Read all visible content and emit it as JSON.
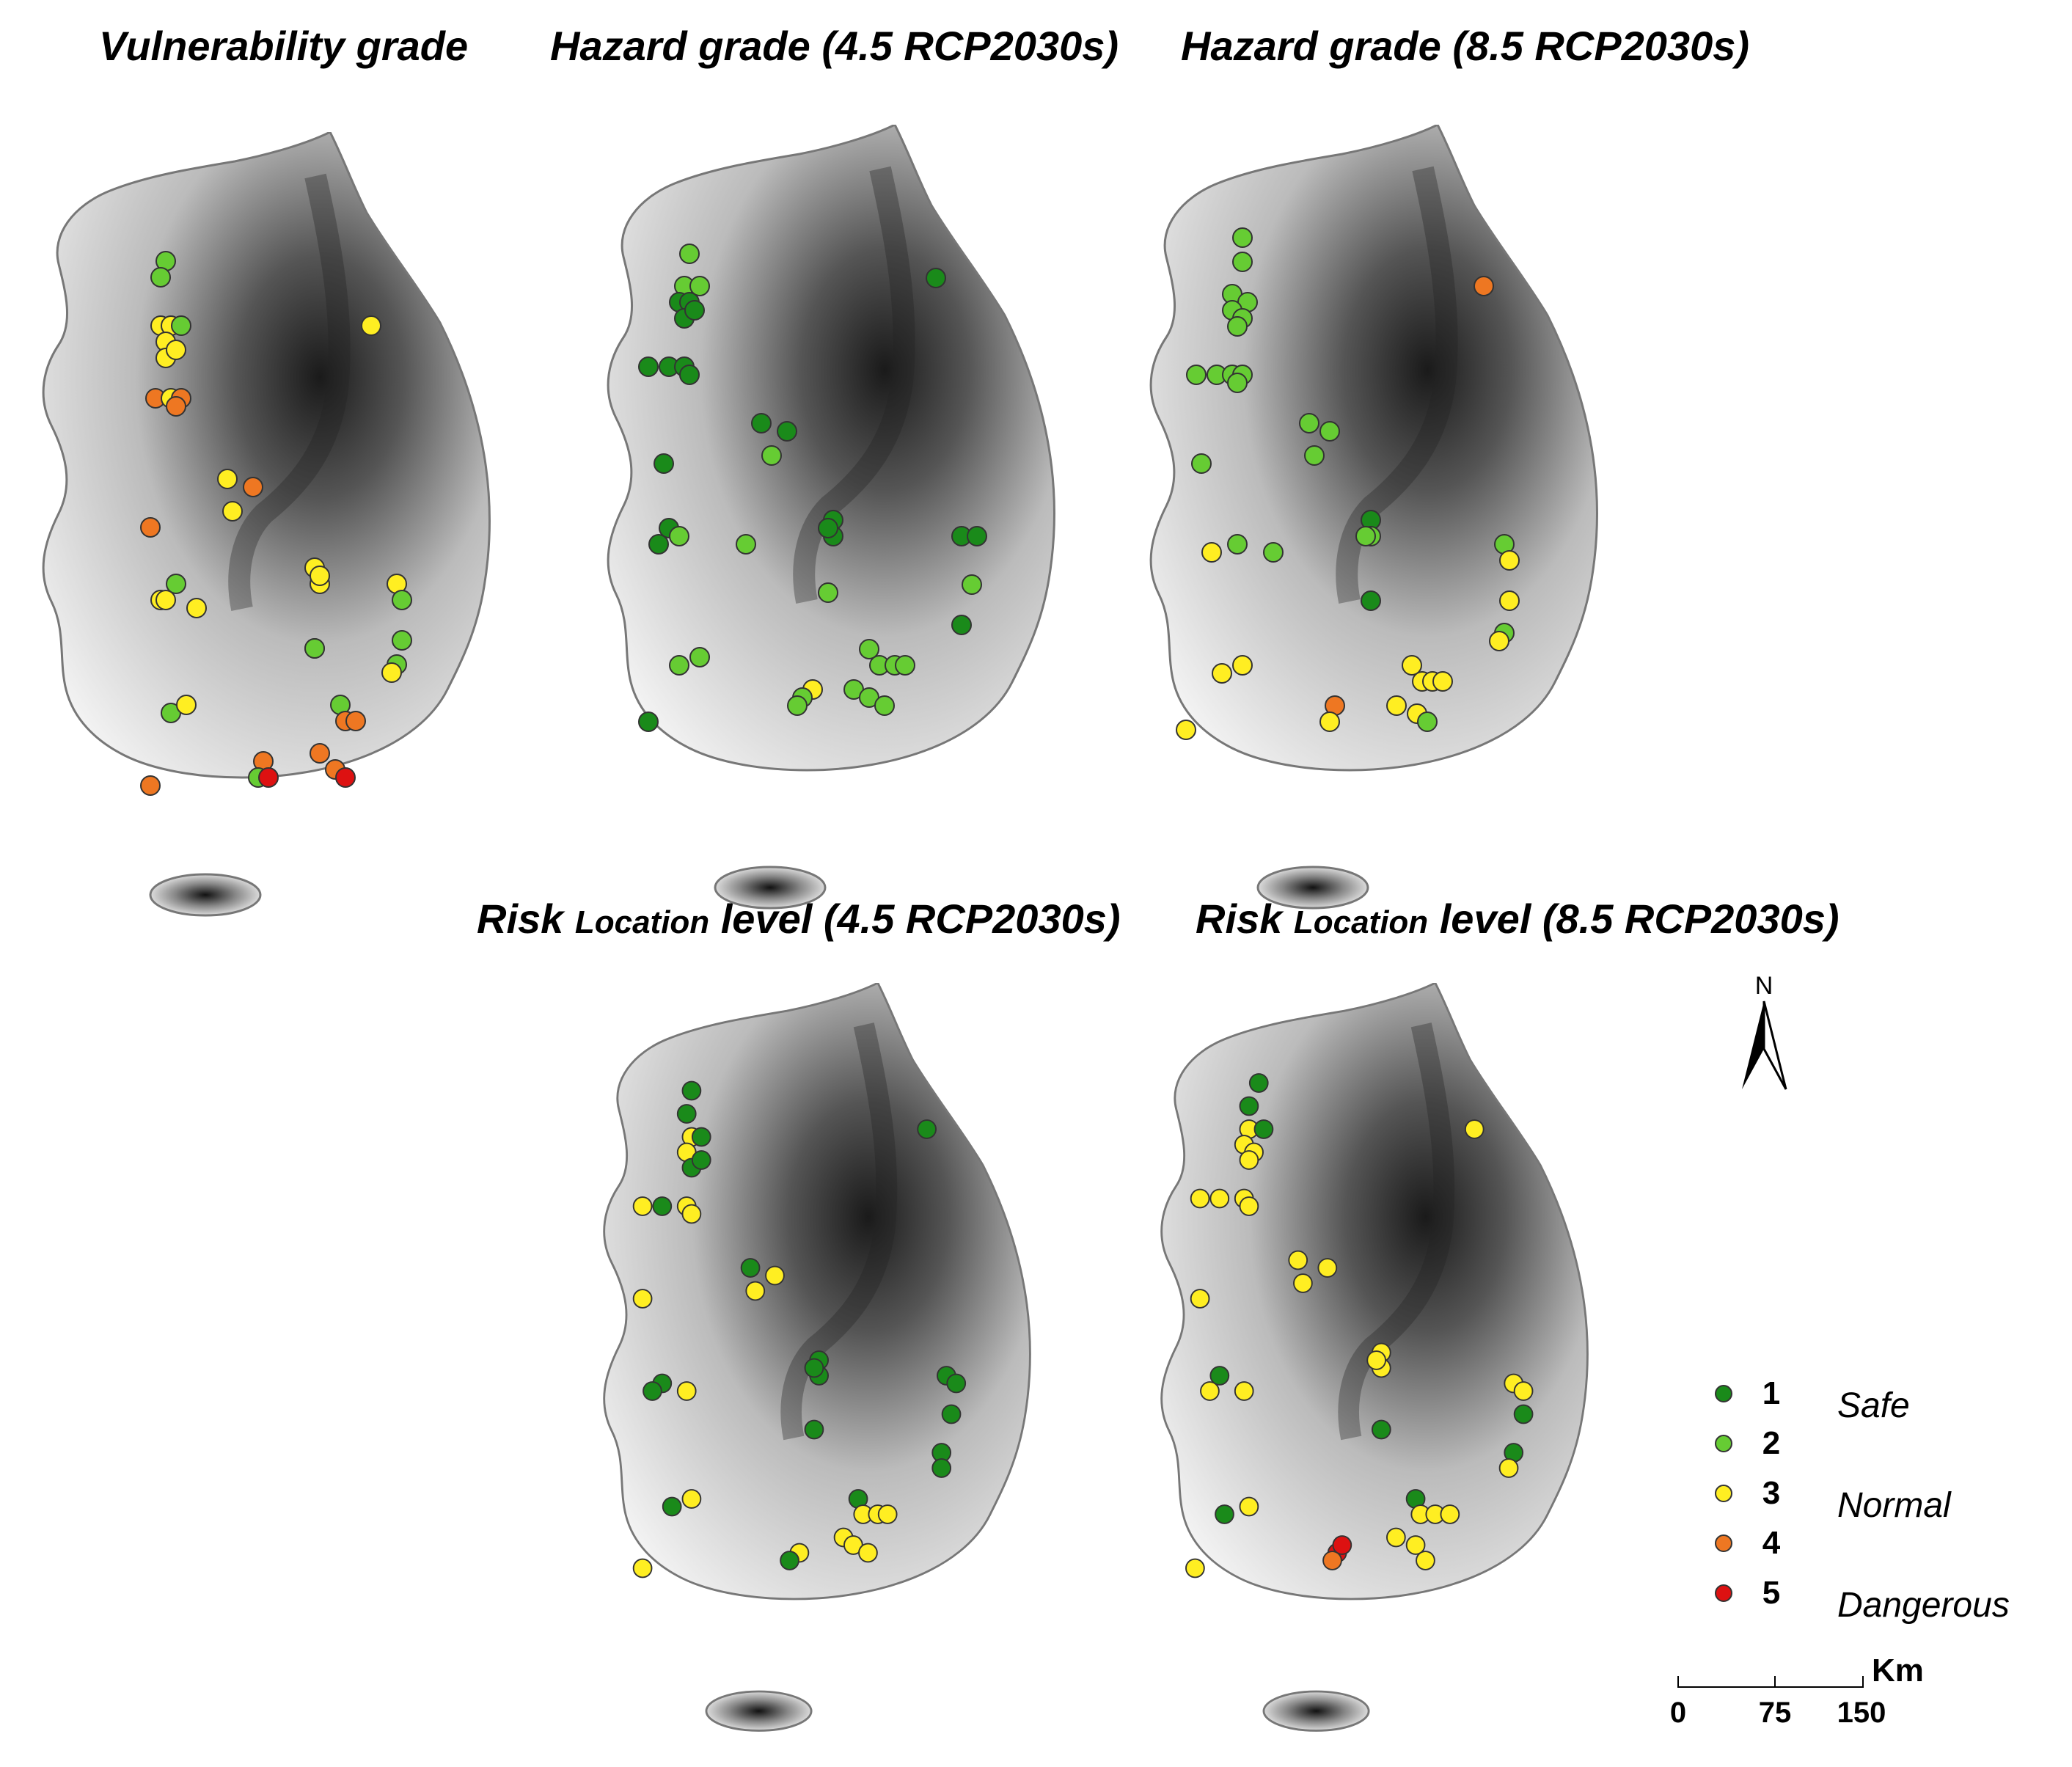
{
  "titles": {
    "vulnerability": "Vulnerability grade",
    "hazard45": "Hazard grade (4.5 RCP2030s)",
    "hazard85": "Hazard grade (8.5 RCP2030s)",
    "risk45_a": "Risk",
    "risk45_b": "Location",
    "risk45_c": "level (4.5 RCP2030s)",
    "risk85_a": "Risk",
    "risk85_b": "Location",
    "risk85_c": "level (8.5 RCP2030s)"
  },
  "colors": {
    "1": "#1a8a1a",
    "2": "#66cc33",
    "3": "#ffee22",
    "4": "#ee7722",
    "5": "#dd1111"
  },
  "legend": {
    "items": [
      {
        "grade": "1",
        "label": "Safe"
      },
      {
        "grade": "2",
        "label": ""
      },
      {
        "grade": "3",
        "label": "Normal"
      },
      {
        "grade": "4",
        "label": ""
      },
      {
        "grade": "5",
        "label": "Dangerous"
      }
    ]
  },
  "north_label": "N",
  "scale": {
    "ticks": [
      "0",
      "75",
      "150"
    ],
    "unit": "Km"
  },
  "panels": {
    "vulnerability": [
      [
        0.28,
        0.16,
        2
      ],
      [
        0.27,
        0.18,
        2
      ],
      [
        0.27,
        0.24,
        3
      ],
      [
        0.29,
        0.24,
        3
      ],
      [
        0.31,
        0.24,
        2
      ],
      [
        0.28,
        0.26,
        3
      ],
      [
        0.28,
        0.28,
        3
      ],
      [
        0.3,
        0.27,
        3
      ],
      [
        0.26,
        0.33,
        4
      ],
      [
        0.29,
        0.33,
        3
      ],
      [
        0.31,
        0.33,
        4
      ],
      [
        0.3,
        0.34,
        4
      ],
      [
        0.68,
        0.24,
        3
      ],
      [
        0.4,
        0.43,
        3
      ],
      [
        0.45,
        0.44,
        4
      ],
      [
        0.41,
        0.47,
        3
      ],
      [
        0.25,
        0.49,
        4
      ],
      [
        0.3,
        0.56,
        2
      ],
      [
        0.27,
        0.58,
        3
      ],
      [
        0.28,
        0.58,
        3
      ],
      [
        0.34,
        0.59,
        3
      ],
      [
        0.57,
        0.54,
        3
      ],
      [
        0.58,
        0.56,
        3
      ],
      [
        0.58,
        0.55,
        3
      ],
      [
        0.73,
        0.56,
        3
      ],
      [
        0.74,
        0.58,
        2
      ],
      [
        0.74,
        0.63,
        2
      ],
      [
        0.57,
        0.64,
        2
      ],
      [
        0.57,
        0.64,
        2
      ],
      [
        0.73,
        0.66,
        2
      ],
      [
        0.72,
        0.67,
        3
      ],
      [
        0.29,
        0.72,
        2
      ],
      [
        0.32,
        0.71,
        3
      ],
      [
        0.62,
        0.71,
        2
      ],
      [
        0.63,
        0.73,
        4
      ],
      [
        0.65,
        0.73,
        4
      ],
      [
        0.47,
        0.78,
        4
      ],
      [
        0.46,
        0.8,
        2
      ],
      [
        0.48,
        0.8,
        5
      ],
      [
        0.58,
        0.77,
        4
      ],
      [
        0.61,
        0.79,
        4
      ],
      [
        0.63,
        0.8,
        5
      ],
      [
        0.25,
        0.81,
        4
      ]
    ],
    "hazard45": [
      [
        0.2,
        0.16,
        2
      ],
      [
        0.19,
        0.2,
        2
      ],
      [
        0.22,
        0.2,
        2
      ],
      [
        0.18,
        0.22,
        1
      ],
      [
        0.2,
        0.22,
        1
      ],
      [
        0.19,
        0.24,
        1
      ],
      [
        0.21,
        0.23,
        1
      ],
      [
        0.12,
        0.3,
        1
      ],
      [
        0.16,
        0.3,
        1
      ],
      [
        0.19,
        0.3,
        1
      ],
      [
        0.2,
        0.31,
        1
      ],
      [
        0.68,
        0.19,
        1
      ],
      [
        0.34,
        0.37,
        1
      ],
      [
        0.39,
        0.38,
        1
      ],
      [
        0.36,
        0.41,
        2
      ],
      [
        0.15,
        0.42,
        1
      ],
      [
        0.48,
        0.49,
        1
      ],
      [
        0.48,
        0.51,
        1
      ],
      [
        0.47,
        0.5,
        1
      ],
      [
        0.16,
        0.5,
        1
      ],
      [
        0.14,
        0.52,
        1
      ],
      [
        0.18,
        0.51,
        2
      ],
      [
        0.31,
        0.52,
        2
      ],
      [
        0.73,
        0.51,
        1
      ],
      [
        0.76,
        0.51,
        1
      ],
      [
        0.75,
        0.57,
        2
      ],
      [
        0.47,
        0.58,
        2
      ],
      [
        0.73,
        0.62,
        1
      ],
      [
        0.55,
        0.65,
        2
      ],
      [
        0.57,
        0.67,
        2
      ],
      [
        0.6,
        0.67,
        2
      ],
      [
        0.62,
        0.67,
        2
      ],
      [
        0.18,
        0.67,
        2
      ],
      [
        0.22,
        0.66,
        2
      ],
      [
        0.44,
        0.7,
        3
      ],
      [
        0.52,
        0.7,
        2
      ],
      [
        0.55,
        0.71,
        2
      ],
      [
        0.58,
        0.72,
        2
      ],
      [
        0.42,
        0.71,
        2
      ],
      [
        0.41,
        0.72,
        2
      ],
      [
        0.12,
        0.74,
        1
      ]
    ],
    "hazard85": [
      [
        0.22,
        0.14,
        2
      ],
      [
        0.22,
        0.17,
        2
      ],
      [
        0.2,
        0.21,
        2
      ],
      [
        0.23,
        0.22,
        2
      ],
      [
        0.2,
        0.23,
        2
      ],
      [
        0.22,
        0.24,
        2
      ],
      [
        0.21,
        0.25,
        2
      ],
      [
        0.13,
        0.31,
        2
      ],
      [
        0.17,
        0.31,
        2
      ],
      [
        0.2,
        0.31,
        2
      ],
      [
        0.22,
        0.31,
        2
      ],
      [
        0.21,
        0.32,
        2
      ],
      [
        0.69,
        0.2,
        4
      ],
      [
        0.35,
        0.37,
        2
      ],
      [
        0.39,
        0.38,
        2
      ],
      [
        0.36,
        0.41,
        2
      ],
      [
        0.14,
        0.42,
        2
      ],
      [
        0.47,
        0.49,
        1
      ],
      [
        0.47,
        0.51,
        2
      ],
      [
        0.46,
        0.51,
        2
      ],
      [
        0.21,
        0.52,
        2
      ],
      [
        0.16,
        0.53,
        3
      ],
      [
        0.28,
        0.53,
        2
      ],
      [
        0.73,
        0.52,
        2
      ],
      [
        0.74,
        0.54,
        3
      ],
      [
        0.74,
        0.59,
        3
      ],
      [
        0.47,
        0.59,
        1
      ],
      [
        0.73,
        0.63,
        2
      ],
      [
        0.72,
        0.64,
        3
      ],
      [
        0.55,
        0.67,
        3
      ],
      [
        0.57,
        0.69,
        3
      ],
      [
        0.59,
        0.69,
        3
      ],
      [
        0.61,
        0.69,
        3
      ],
      [
        0.18,
        0.68,
        3
      ],
      [
        0.22,
        0.67,
        3
      ],
      [
        0.52,
        0.72,
        3
      ],
      [
        0.56,
        0.73,
        3
      ],
      [
        0.58,
        0.74,
        2
      ],
      [
        0.4,
        0.72,
        4
      ],
      [
        0.39,
        0.74,
        3
      ],
      [
        0.11,
        0.75,
        3
      ]
    ],
    "risk45": [
      [
        0.22,
        0.14,
        1
      ],
      [
        0.21,
        0.17,
        1
      ],
      [
        0.22,
        0.2,
        3
      ],
      [
        0.24,
        0.2,
        1
      ],
      [
        0.21,
        0.22,
        3
      ],
      [
        0.22,
        0.24,
        1
      ],
      [
        0.24,
        0.23,
        1
      ],
      [
        0.12,
        0.29,
        3
      ],
      [
        0.16,
        0.29,
        1
      ],
      [
        0.21,
        0.29,
        3
      ],
      [
        0.22,
        0.3,
        3
      ],
      [
        0.7,
        0.19,
        1
      ],
      [
        0.34,
        0.37,
        1
      ],
      [
        0.39,
        0.38,
        3
      ],
      [
        0.35,
        0.4,
        3
      ],
      [
        0.12,
        0.41,
        3
      ],
      [
        0.48,
        0.49,
        1
      ],
      [
        0.48,
        0.51,
        1
      ],
      [
        0.47,
        0.5,
        1
      ],
      [
        0.16,
        0.52,
        1
      ],
      [
        0.14,
        0.53,
        1
      ],
      [
        0.21,
        0.53,
        3
      ],
      [
        0.74,
        0.51,
        1
      ],
      [
        0.76,
        0.52,
        1
      ],
      [
        0.75,
        0.56,
        1
      ],
      [
        0.47,
        0.58,
        1
      ],
      [
        0.73,
        0.61,
        1
      ],
      [
        0.73,
        0.63,
        1
      ],
      [
        0.56,
        0.67,
        1
      ],
      [
        0.57,
        0.69,
        3
      ],
      [
        0.6,
        0.69,
        3
      ],
      [
        0.62,
        0.69,
        3
      ],
      [
        0.18,
        0.68,
        1
      ],
      [
        0.22,
        0.67,
        3
      ],
      [
        0.53,
        0.72,
        3
      ],
      [
        0.55,
        0.73,
        3
      ],
      [
        0.58,
        0.74,
        3
      ],
      [
        0.44,
        0.74,
        3
      ],
      [
        0.42,
        0.75,
        1
      ],
      [
        0.12,
        0.76,
        3
      ]
    ],
    "risk85": [
      [
        0.24,
        0.13,
        1
      ],
      [
        0.22,
        0.16,
        1
      ],
      [
        0.22,
        0.19,
        3
      ],
      [
        0.25,
        0.19,
        1
      ],
      [
        0.21,
        0.21,
        3
      ],
      [
        0.23,
        0.22,
        3
      ],
      [
        0.22,
        0.23,
        3
      ],
      [
        0.12,
        0.28,
        3
      ],
      [
        0.16,
        0.28,
        3
      ],
      [
        0.21,
        0.28,
        3
      ],
      [
        0.22,
        0.29,
        3
      ],
      [
        0.68,
        0.19,
        3
      ],
      [
        0.32,
        0.36,
        3
      ],
      [
        0.38,
        0.37,
        3
      ],
      [
        0.33,
        0.39,
        3
      ],
      [
        0.12,
        0.41,
        3
      ],
      [
        0.49,
        0.48,
        3
      ],
      [
        0.49,
        0.5,
        3
      ],
      [
        0.48,
        0.49,
        3
      ],
      [
        0.16,
        0.51,
        1
      ],
      [
        0.14,
        0.53,
        3
      ],
      [
        0.21,
        0.53,
        3
      ],
      [
        0.76,
        0.52,
        3
      ],
      [
        0.78,
        0.53,
        3
      ],
      [
        0.78,
        0.56,
        1
      ],
      [
        0.49,
        0.58,
        1
      ],
      [
        0.76,
        0.61,
        1
      ],
      [
        0.75,
        0.63,
        3
      ],
      [
        0.56,
        0.67,
        1
      ],
      [
        0.57,
        0.69,
        3
      ],
      [
        0.6,
        0.69,
        3
      ],
      [
        0.63,
        0.69,
        3
      ],
      [
        0.17,
        0.69,
        1
      ],
      [
        0.22,
        0.68,
        3
      ],
      [
        0.52,
        0.72,
        3
      ],
      [
        0.56,
        0.73,
        3
      ],
      [
        0.58,
        0.75,
        3
      ],
      [
        0.4,
        0.74,
        5
      ],
      [
        0.39,
        0.75,
        4
      ],
      [
        0.41,
        0.73,
        5
      ],
      [
        0.11,
        0.76,
        3
      ]
    ]
  }
}
